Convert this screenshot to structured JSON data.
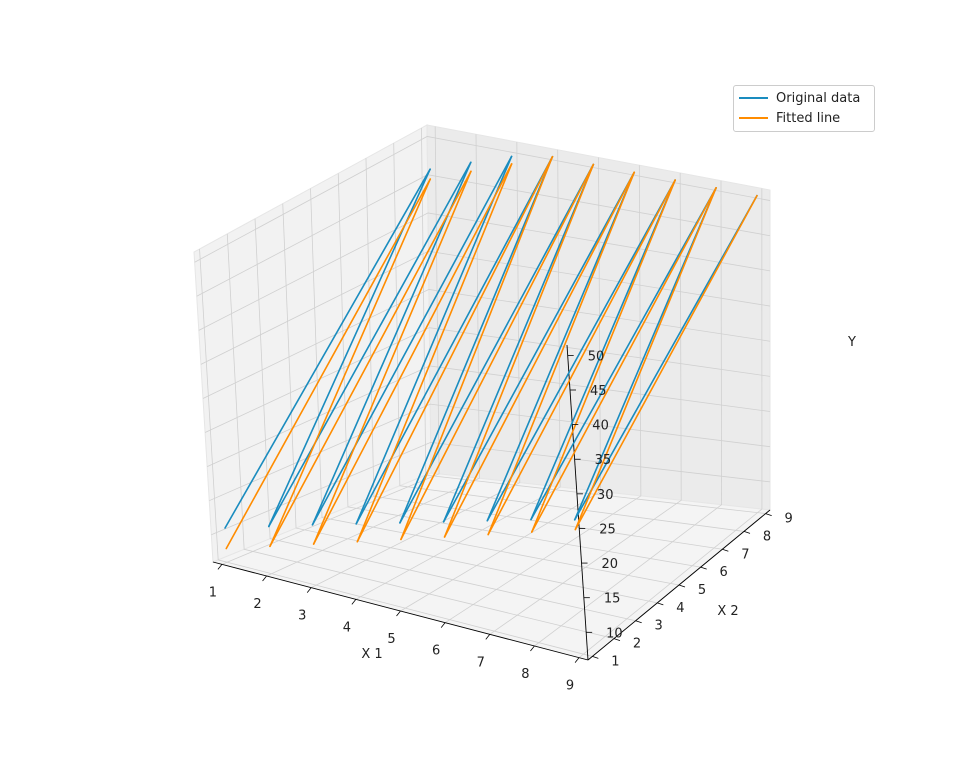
{
  "chart_data": {
    "type": "line",
    "projection": "3d",
    "xlabel": "X 1",
    "ylabel": "X 2",
    "zlabel": "Y",
    "x_ticks": [
      "1",
      "2",
      "3",
      "4",
      "5",
      "6",
      "7",
      "8",
      "9"
    ],
    "y_ticks": [
      "1",
      "2",
      "3",
      "4",
      "5",
      "6",
      "7",
      "8",
      "9"
    ],
    "z_ticks": [
      "10",
      "15",
      "20",
      "25",
      "30",
      "35",
      "40",
      "45",
      "50"
    ],
    "xlim": [
      0.8,
      9.2
    ],
    "ylim": [
      0.8,
      9.2
    ],
    "zlim": [
      6.0,
      51.5
    ],
    "grid": true,
    "legend_position": "top-right",
    "grid_x": [
      1,
      2,
      3,
      4,
      5,
      6,
      7,
      8,
      9
    ],
    "series": [
      {
        "name": "Original data",
        "color": "#1a8cbf",
        "points": [
          [
            1,
            1,
            11.0
          ],
          [
            1,
            9,
            46.3
          ],
          [
            2,
            1,
            12.9
          ],
          [
            2,
            9,
            48.2
          ],
          [
            3,
            1,
            14.8
          ],
          [
            3,
            9,
            50.0
          ],
          [
            4,
            1,
            16.6
          ],
          [
            4,
            9,
            51.0
          ],
          [
            5,
            1,
            18.4
          ],
          [
            5,
            9,
            51.0
          ],
          [
            6,
            1,
            20.2
          ],
          [
            6,
            9,
            51.0
          ],
          [
            7,
            1,
            22.0
          ],
          [
            7,
            9,
            51.0
          ],
          [
            8,
            1,
            23.8
          ],
          [
            8,
            9,
            51.0
          ],
          [
            9,
            1,
            25.4
          ],
          [
            9,
            9,
            51.0
          ]
        ]
      },
      {
        "name": "Fitted line",
        "color": "#ff8c00",
        "points": [
          [
            1,
            1,
            8.0
          ],
          [
            1,
            9,
            45.0
          ],
          [
            2,
            1,
            10.0
          ],
          [
            2,
            9,
            47.0
          ],
          [
            3,
            1,
            12.0
          ],
          [
            3,
            9,
            49.0
          ],
          [
            4,
            1,
            14.0
          ],
          [
            4,
            9,
            51.0
          ],
          [
            5,
            1,
            16.0
          ],
          [
            5,
            9,
            51.0
          ],
          [
            6,
            1,
            18.0
          ],
          [
            6,
            9,
            51.0
          ],
          [
            7,
            1,
            20.0
          ],
          [
            7,
            9,
            51.0
          ],
          [
            8,
            1,
            22.0
          ],
          [
            8,
            9,
            51.0
          ],
          [
            9,
            1,
            24.0
          ],
          [
            9,
            9,
            51.0
          ]
        ]
      }
    ]
  }
}
